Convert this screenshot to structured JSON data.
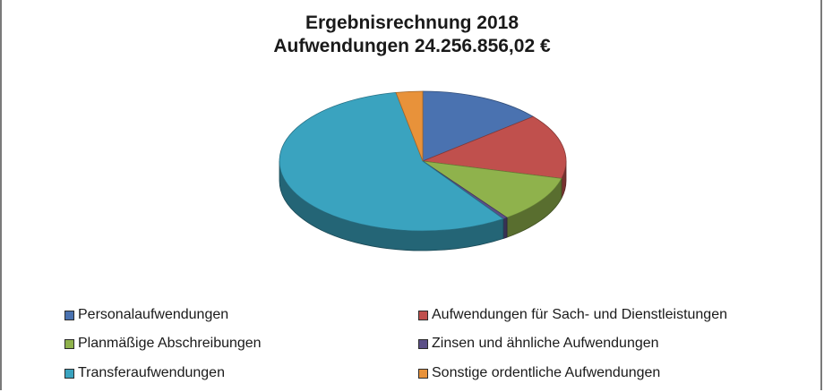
{
  "chart_data": {
    "type": "pie",
    "title": "Ergebnisrechnung 2018",
    "subtitle": "Aufwendungen 24.256.856,02 €",
    "legend_position": "bottom",
    "series": [
      {
        "name": "Personalaufwendungen",
        "value": 14,
        "color": "#4a72b0"
      },
      {
        "name": "Aufwendungen für Sach- und Dienstleistungen",
        "value": 15,
        "color": "#c0504d"
      },
      {
        "name": "Planmäßige Abschreibungen",
        "value": 11,
        "color": "#8fb24c"
      },
      {
        "name": "Zinsen und ähnliche Aufwendungen",
        "value": 0.5,
        "color": "#5b4f87"
      },
      {
        "name": "Transferaufwendungen",
        "value": 56.5,
        "color": "#3aa3bf"
      },
      {
        "name": "Sonstige ordentliche Aufwendungen",
        "value": 3,
        "color": "#e8923a"
      }
    ]
  }
}
